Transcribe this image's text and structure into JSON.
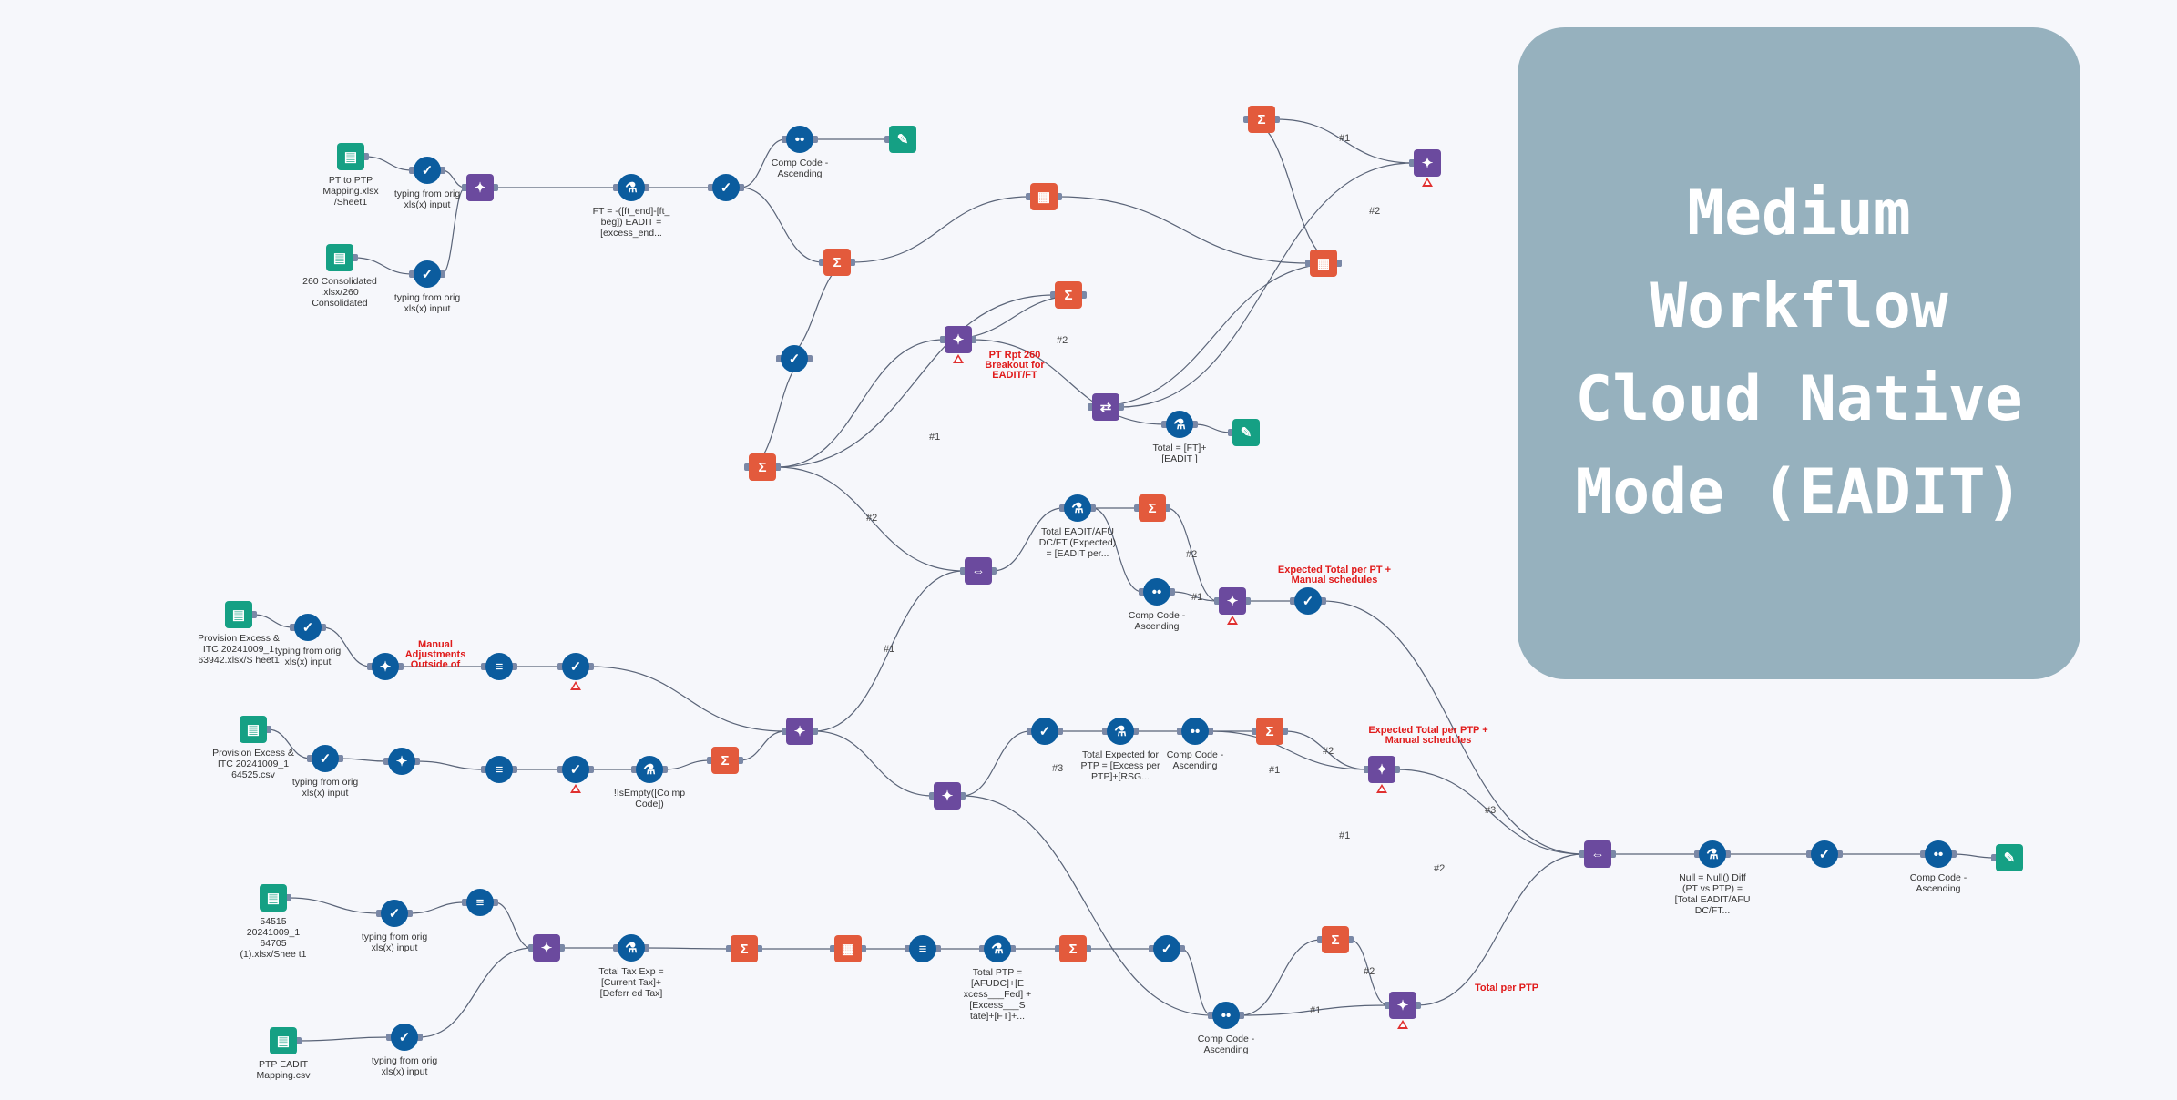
{
  "title_card": {
    "lines": [
      "Medium",
      "Workflow",
      "Cloud Native",
      "Mode (EADIT)"
    ]
  },
  "colors": {
    "background": "#f6f7fb",
    "title_card": "#96b1be",
    "tool_blue": "#0b5c9e",
    "tool_orange": "#e35a3c",
    "tool_purple": "#6b4a9e",
    "tool_teal": "#15a084",
    "annotation_red": "#e01b1b",
    "wire": "#5a6478"
  },
  "tools": [
    {
      "id": "in1",
      "icon": "book-icon",
      "label": "PT to PTP Mapping.xlsx /Sheet1"
    },
    {
      "id": "sel1",
      "icon": "select-check-icon",
      "label": "typing from orig xls(x) input"
    },
    {
      "id": "in2",
      "icon": "book-icon",
      "label": "260 Consolidated .xlsx/260 Consolidated"
    },
    {
      "id": "sel2",
      "icon": "select-check-icon",
      "label": "typing from orig xls(x) input"
    },
    {
      "id": "join1",
      "icon": "join-icon",
      "label": ""
    },
    {
      "id": "form1",
      "icon": "formula-flask-icon",
      "label": "FT = -([ft_end]-[ft_ beg]) EADIT = [excess_end..."
    },
    {
      "id": "sel3",
      "icon": "select-check-icon",
      "label": ""
    },
    {
      "id": "sort1",
      "icon": "sort-icon",
      "label": "Comp Code - Ascending"
    },
    {
      "id": "out1",
      "icon": "browse-output-icon",
      "label": ""
    },
    {
      "id": "sum1",
      "icon": "summarize-sigma-icon",
      "label": ""
    },
    {
      "id": "cross1",
      "icon": "crosstab-icon",
      "label": ""
    },
    {
      "id": "sel4",
      "icon": "select-check-icon",
      "label": ""
    },
    {
      "id": "sum2",
      "icon": "summarize-sigma-icon",
      "label": ""
    },
    {
      "id": "sum3",
      "icon": "summarize-sigma-icon",
      "label": ""
    },
    {
      "id": "join2",
      "icon": "join-icon",
      "label": ""
    },
    {
      "id": "form2",
      "icon": "formula-flask-icon",
      "label": "Total = [FT]+[EADIT ]"
    },
    {
      "id": "out2",
      "icon": "browse-output-icon",
      "label": ""
    },
    {
      "id": "cross2",
      "icon": "crosstab-icon",
      "label": ""
    },
    {
      "id": "sum4",
      "icon": "summarize-sigma-icon",
      "label": ""
    },
    {
      "id": "join3",
      "icon": "join-icon",
      "label": ""
    },
    {
      "id": "trans1",
      "icon": "transpose-icon",
      "label": ""
    },
    {
      "id": "union1",
      "icon": "union-icon",
      "label": ""
    },
    {
      "id": "form3",
      "icon": "formula-flask-icon",
      "label": "Total EADIT/AFU DC/FT (Expected) = [EADIT per..."
    },
    {
      "id": "sum5",
      "icon": "summarize-sigma-icon",
      "label": ""
    },
    {
      "id": "sort2",
      "icon": "sort-icon",
      "label": "Comp Code - Ascending"
    },
    {
      "id": "join4",
      "icon": "join-icon",
      "label": ""
    },
    {
      "id": "sel5",
      "icon": "select-check-icon",
      "label": ""
    },
    {
      "id": "in3",
      "icon": "book-icon",
      "label": "Provision Excess & ITC 20241009_1 63942.xlsx/S heet1"
    },
    {
      "id": "sel6",
      "icon": "select-check-icon",
      "label": "typing from orig xls(x) input"
    },
    {
      "id": "mc1",
      "icon": "multi-field-icon",
      "label": ""
    },
    {
      "id": "tile1",
      "icon": "text-to-columns-icon",
      "label": ""
    },
    {
      "id": "filt1",
      "icon": "filter-icon",
      "label": ""
    },
    {
      "id": "in4",
      "icon": "book-icon",
      "label": "Provision Excess & ITC 20241009_1 64525.csv"
    },
    {
      "id": "sel7",
      "icon": "select-check-icon",
      "label": "typing from orig xls(x) input"
    },
    {
      "id": "mc2",
      "icon": "multi-field-icon",
      "label": ""
    },
    {
      "id": "tile2",
      "icon": "text-to-columns-icon",
      "label": ""
    },
    {
      "id": "filt2",
      "icon": "filter-icon",
      "label": ""
    },
    {
      "id": "form4",
      "icon": "formula-flask-icon",
      "label": "!IsEmpty([Co mp Code])"
    },
    {
      "id": "sum6",
      "icon": "summarize-sigma-icon",
      "label": ""
    },
    {
      "id": "join5",
      "icon": "join-icon",
      "label": ""
    },
    {
      "id": "sel8",
      "icon": "select-check-icon",
      "label": ""
    },
    {
      "id": "form5",
      "icon": "formula-flask-icon",
      "label": "Total Expected for PTP = [Excess per PTP]+[RSG..."
    },
    {
      "id": "sort3",
      "icon": "sort-icon",
      "label": "Comp Code - Ascending"
    },
    {
      "id": "sum7",
      "icon": "summarize-sigma-icon",
      "label": ""
    },
    {
      "id": "join6",
      "icon": "join-icon",
      "label": ""
    },
    {
      "id": "join7",
      "icon": "join-icon",
      "label": ""
    },
    {
      "id": "union2",
      "icon": "union-icon",
      "label": ""
    },
    {
      "id": "form6",
      "icon": "formula-flask-icon",
      "label": "Null = Null() Diff (PT vs PTP) = [Total EADIT/AFU DC/FT..."
    },
    {
      "id": "sel9",
      "icon": "select-check-icon",
      "label": ""
    },
    {
      "id": "sort4",
      "icon": "sort-icon",
      "label": "Comp Code - Ascending"
    },
    {
      "id": "out3",
      "icon": "browse-output-icon",
      "label": ""
    },
    {
      "id": "in5",
      "icon": "book-icon",
      "label": "54515 20241009_1 64705 (1).xlsx/Shee t1"
    },
    {
      "id": "sel10",
      "icon": "select-check-icon",
      "label": "typing from orig xls(x) input"
    },
    {
      "id": "tile3",
      "icon": "text-to-columns-icon",
      "label": ""
    },
    {
      "id": "in6",
      "icon": "book-icon",
      "label": "PTP EADIT Mapping.csv"
    },
    {
      "id": "sel11",
      "icon": "select-check-icon",
      "label": "typing from orig xls(x) input"
    },
    {
      "id": "join8",
      "icon": "join-icon",
      "label": ""
    },
    {
      "id": "form7",
      "icon": "formula-flask-icon",
      "label": "Total Tax Exp = [Current Tax]+[Deferr ed Tax]"
    },
    {
      "id": "sum8",
      "icon": "summarize-sigma-icon",
      "label": ""
    },
    {
      "id": "cross3",
      "icon": "crosstab-icon",
      "label": ""
    },
    {
      "id": "tile4",
      "icon": "text-to-columns-icon",
      "label": ""
    },
    {
      "id": "form8",
      "icon": "formula-flask-icon",
      "label": "Total PTP = [AFUDC]+[E xcess___Fed] +[Excess___S tate]+[FT]+..."
    },
    {
      "id": "sum9",
      "icon": "summarize-sigma-icon",
      "label": ""
    },
    {
      "id": "sel12",
      "icon": "select-check-icon",
      "label": ""
    },
    {
      "id": "sort5",
      "icon": "sort-icon",
      "label": "Comp Code - Ascending"
    },
    {
      "id": "sum10",
      "icon": "summarize-sigma-icon",
      "label": ""
    },
    {
      "id": "join9",
      "icon": "join-icon",
      "label": ""
    }
  ],
  "annotations": [
    {
      "id": "a1",
      "lines": [
        "PT Rpt 260",
        "Breakout for",
        "EADIT/FT"
      ]
    },
    {
      "id": "a2",
      "lines": [
        "Manual",
        "Adjustments",
        "Outside of"
      ]
    },
    {
      "id": "a3",
      "lines": [
        "Expected Total per PT +",
        "Manual schedules"
      ]
    },
    {
      "id": "a4",
      "lines": [
        "Expected Total per PTP +",
        "Manual schedules"
      ]
    },
    {
      "id": "a5",
      "lines": [
        "Total per PTP"
      ]
    }
  ],
  "edge_labels": [
    {
      "id": "e1",
      "text": "#1"
    },
    {
      "id": "e2",
      "text": "#2"
    },
    {
      "id": "e3",
      "text": "#2"
    },
    {
      "id": "e4",
      "text": "#1"
    },
    {
      "id": "e5",
      "text": "#2"
    },
    {
      "id": "e6",
      "text": "#2"
    },
    {
      "id": "e7",
      "text": "#1"
    },
    {
      "id": "e8",
      "text": "#1"
    },
    {
      "id": "e9",
      "text": "#3"
    },
    {
      "id": "e10",
      "text": "#2"
    },
    {
      "id": "e11",
      "text": "#1"
    },
    {
      "id": "e12",
      "text": "#3"
    },
    {
      "id": "e13",
      "text": "#1"
    },
    {
      "id": "e14",
      "text": "#2"
    },
    {
      "id": "e15",
      "text": "#2"
    },
    {
      "id": "e16",
      "text": "#1"
    }
  ]
}
